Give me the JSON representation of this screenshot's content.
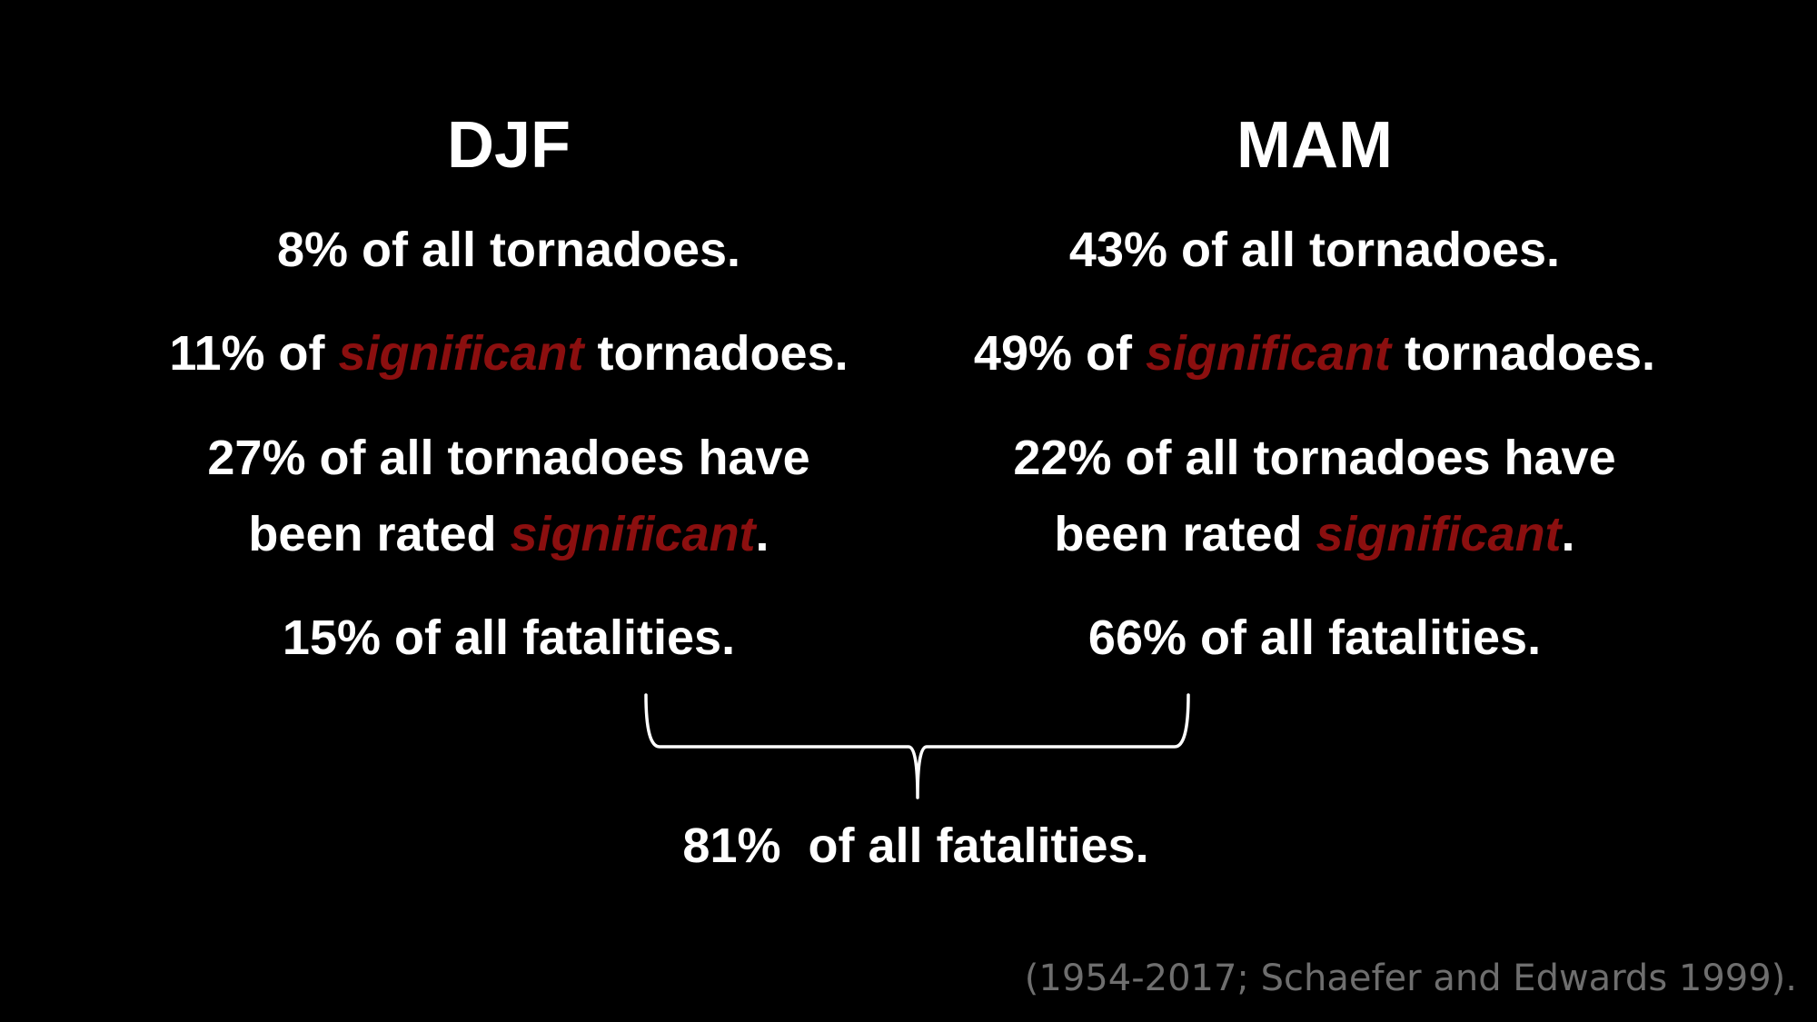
{
  "left": {
    "heading": "DJF",
    "line1": "8% of all tornadoes.",
    "line2_prefix": "11% of ",
    "line2_highlight": "significant",
    "line2_suffix": " tornadoes.",
    "line3a": "27% of all tornadoes have",
    "line3b_prefix": "been rated ",
    "line3b_highlight": "significant",
    "line3b_suffix": ".",
    "line4": "15% of all fatalities."
  },
  "right": {
    "heading": "MAM",
    "line1": "43% of all tornadoes.",
    "line2_prefix": "49% of ",
    "line2_highlight": "significant",
    "line2_suffix": " tornadoes.",
    "line3a": "22% of all tornadoes have",
    "line3b_prefix": "been rated ",
    "line3b_highlight": "significant",
    "line3b_suffix": ".",
    "line4": "66% of all fatalities."
  },
  "combined": "81%  of all fatalities.",
  "citation": "(1954-2017; Schaefer and Edwards 1999).",
  "colors": {
    "background": "#000000",
    "text": "#ffffff",
    "highlight": "#8b0f0f",
    "citation": "#6e6e6e"
  }
}
